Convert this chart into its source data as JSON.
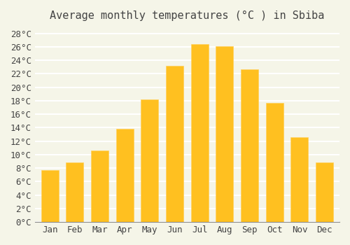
{
  "title": "Average monthly temperatures (°C ) in Sbiba",
  "months": [
    "Jan",
    "Feb",
    "Mar",
    "Apr",
    "May",
    "Jun",
    "Jul",
    "Aug",
    "Sep",
    "Oct",
    "Nov",
    "Dec"
  ],
  "values": [
    7.7,
    8.9,
    10.6,
    13.8,
    18.2,
    23.2,
    26.4,
    26.1,
    22.7,
    17.7,
    12.6,
    8.9
  ],
  "bar_color_top": "#FFC020",
  "bar_color_bottom": "#FFD060",
  "ylim": [
    0,
    29
  ],
  "yticks": [
    0,
    2,
    4,
    6,
    8,
    10,
    12,
    14,
    16,
    18,
    20,
    22,
    24,
    26,
    28
  ],
  "ytick_labels": [
    "0°C",
    "2°C",
    "4°C",
    "6°C",
    "8°C",
    "10°C",
    "12°C",
    "14°C",
    "16°C",
    "18°C",
    "20°C",
    "22°C",
    "24°C",
    "26°C",
    "28°C"
  ],
  "background_color": "#F5F5E8",
  "grid_color": "#FFFFFF",
  "title_fontsize": 11,
  "tick_fontsize": 9,
  "font_color": "#444444"
}
